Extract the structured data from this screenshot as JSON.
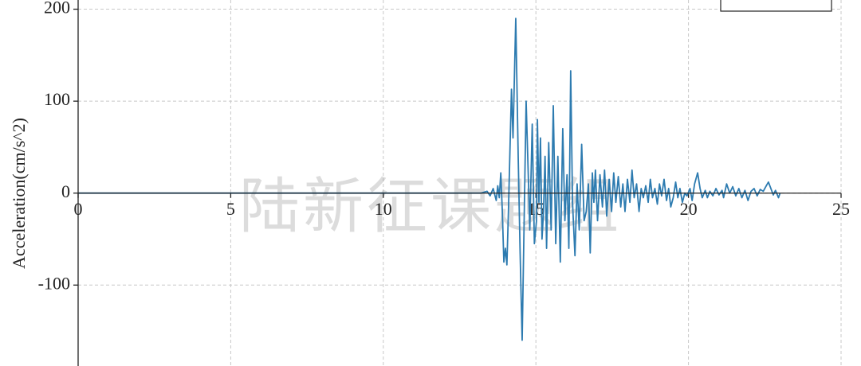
{
  "chart_data": {
    "type": "line",
    "y_label": "Acceleration(cm/s^2)",
    "watermark": "陆新征课题组",
    "color": "#2d7bb0",
    "grid": true,
    "xlim": [
      0,
      25
    ],
    "xticks": [
      0,
      5,
      10,
      15,
      20,
      25
    ],
    "ylim": [
      -188,
      210
    ],
    "yticks": [
      -100,
      0,
      100,
      200
    ],
    "x": [
      0,
      13.2,
      13.4,
      13.5,
      13.6,
      13.7,
      13.75,
      13.8,
      13.85,
      13.9,
      13.95,
      14.0,
      14.05,
      14.1,
      14.2,
      14.25,
      14.34,
      14.42,
      14.48,
      14.55,
      14.62,
      14.68,
      14.75,
      14.8,
      14.88,
      14.95,
      15.02,
      15.05,
      15.1,
      15.15,
      15.2,
      15.25,
      15.3,
      15.35,
      15.42,
      15.5,
      15.57,
      15.65,
      15.72,
      15.8,
      15.88,
      15.95,
      16.02,
      16.08,
      16.14,
      16.2,
      16.28,
      16.35,
      16.42,
      16.5,
      16.58,
      16.65,
      16.72,
      16.78,
      16.85,
      16.9,
      16.95,
      17.02,
      17.1,
      17.18,
      17.25,
      17.32,
      17.4,
      17.48,
      17.55,
      17.62,
      17.7,
      17.78,
      17.85,
      17.92,
      18.0,
      18.08,
      18.15,
      18.22,
      18.3,
      18.38,
      18.45,
      18.52,
      18.6,
      18.68,
      18.75,
      18.82,
      18.9,
      18.98,
      19.05,
      19.12,
      19.2,
      19.28,
      19.35,
      19.42,
      19.5,
      19.58,
      19.65,
      19.72,
      19.8,
      19.88,
      19.95,
      20.05,
      20.12,
      20.2,
      20.3,
      20.38,
      20.45,
      20.55,
      20.62,
      20.7,
      20.8,
      20.9,
      21.0,
      21.1,
      21.15,
      21.25,
      21.35,
      21.45,
      21.55,
      21.65,
      21.75,
      21.85,
      21.95,
      22.05,
      22.15,
      22.25,
      22.35,
      22.45,
      22.55,
      22.62,
      22.7,
      22.78,
      22.85,
      22.95,
      23.0
    ],
    "values": [
      0,
      0,
      2,
      -3,
      5,
      -8,
      8,
      -5,
      22,
      -20,
      -75,
      -60,
      -78,
      -20,
      113,
      60,
      190,
      40,
      -60,
      -160,
      -20,
      100,
      20,
      -40,
      75,
      -55,
      -30,
      80,
      -10,
      60,
      -50,
      -20,
      40,
      -60,
      55,
      -40,
      95,
      -55,
      40,
      -75,
      70,
      -30,
      20,
      -60,
      133,
      -10,
      -68,
      10,
      -40,
      53,
      -30,
      -20,
      10,
      -65,
      22,
      -10,
      25,
      -30,
      20,
      -15,
      25,
      -25,
      15,
      -20,
      22,
      -10,
      18,
      -15,
      10,
      -20,
      15,
      -10,
      25,
      -5,
      10,
      -20,
      5,
      -5,
      8,
      -10,
      15,
      -5,
      5,
      -12,
      10,
      -3,
      15,
      -8,
      5,
      -15,
      -5,
      12,
      -5,
      5,
      -10,
      0,
      -3,
      5,
      -8,
      10,
      22,
      5,
      -5,
      3,
      -5,
      2,
      -3,
      5,
      -2,
      3,
      -5,
      10,
      0,
      7,
      -3,
      5,
      -5,
      3,
      -8,
      2,
      5,
      -3,
      4,
      2,
      8,
      12,
      5,
      -2,
      3,
      -5,
      0
    ]
  }
}
